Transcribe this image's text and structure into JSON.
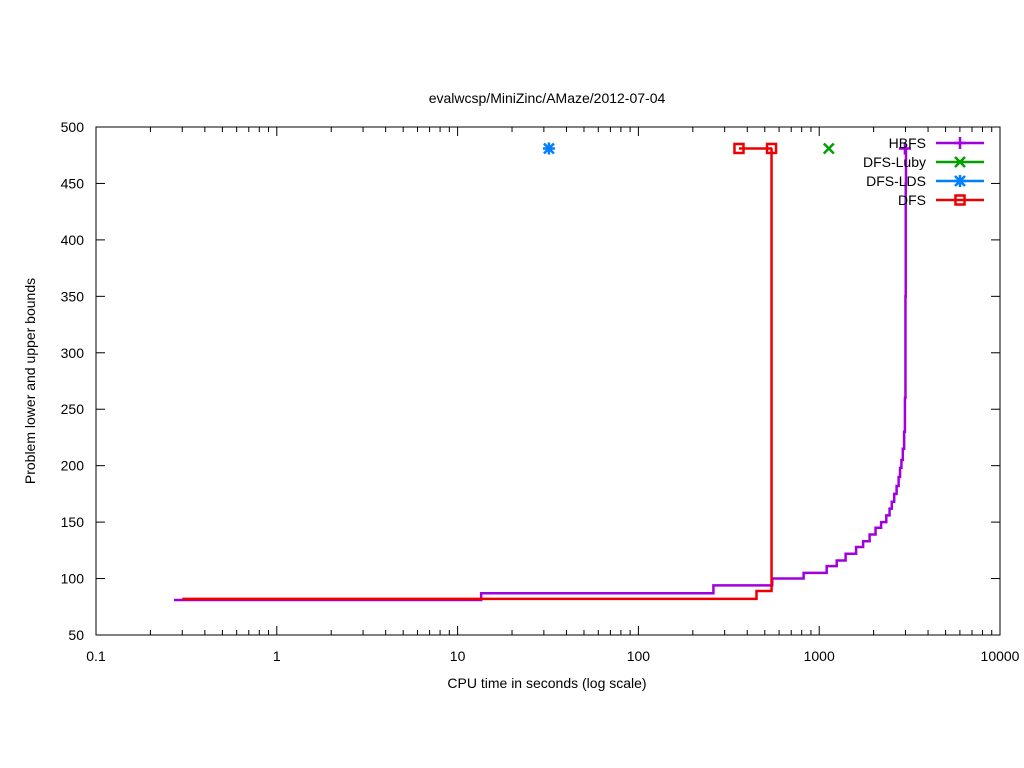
{
  "chart_data": {
    "type": "line",
    "title": "evalwcsp/MiniZinc/AMaze/2012-07-04",
    "xlabel": "CPU time in seconds (log scale)",
    "ylabel": "Problem lower and upper bounds",
    "xscale": "log",
    "xlim": [
      0.1,
      10000
    ],
    "ylim": [
      50,
      500
    ],
    "xticks": [
      0.1,
      1,
      10,
      100,
      1000,
      10000
    ],
    "xtick_labels": [
      "0.1",
      "1",
      "10",
      "100",
      "1000",
      "10000"
    ],
    "yticks": [
      50,
      100,
      150,
      200,
      250,
      300,
      350,
      400,
      450,
      500
    ],
    "ytick_labels": [
      "50",
      "100",
      "150",
      "200",
      "250",
      "300",
      "350",
      "400",
      "450",
      "500"
    ],
    "grid": false,
    "legend": "top-right",
    "series": [
      {
        "name": "HBFS",
        "color": "#a000e0",
        "marker": "plus",
        "style": "step",
        "x": [
          0.27,
          13.5,
          260,
          550,
          820,
          1100,
          1250,
          1400,
          1600,
          1750,
          1900,
          2050,
          2200,
          2350,
          2450,
          2520,
          2600,
          2680,
          2750,
          2800,
          2850,
          2900,
          2950,
          2980,
          3000,
          3010,
          3020
        ],
        "y": [
          81,
          87,
          94,
          100,
          105,
          111,
          116,
          122,
          128,
          133,
          139,
          145,
          150,
          156,
          162,
          168,
          175,
          182,
          190,
          198,
          205,
          215,
          230,
          260,
          350,
          450,
          481
        ],
        "markers": [
          [
            2980,
            481
          ]
        ]
      },
      {
        "name": "DFS-Luby",
        "color": "#00a000",
        "marker": "x",
        "x": [
          1130
        ],
        "y": [
          481
        ]
      },
      {
        "name": "DFS-LDS",
        "color": "#0080ff",
        "marker": "star",
        "x": [
          32
        ],
        "y": [
          481
        ]
      },
      {
        "name": "DFS",
        "color": "#ee0000",
        "marker": "square",
        "style": "step",
        "x": [
          0.3,
          450,
          545,
          545,
          550
        ],
        "y": [
          82,
          89,
          90,
          481,
          481
        ],
        "markers": [
          [
            360,
            481
          ],
          [
            545,
            481
          ]
        ],
        "upper_segment": [
          [
            360,
            481
          ],
          [
            545,
            481
          ]
        ]
      }
    ]
  }
}
